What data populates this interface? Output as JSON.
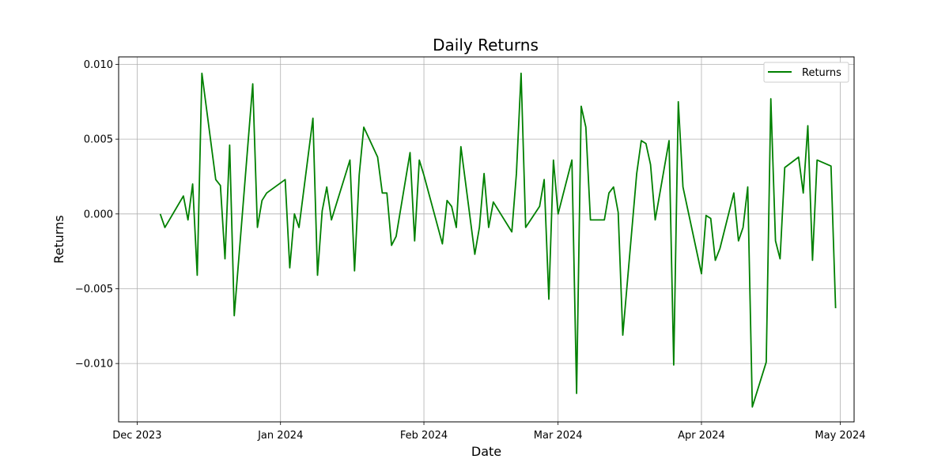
{
  "chart_data": {
    "type": "line",
    "title": "Daily Returns",
    "xlabel": "Date",
    "ylabel": "Returns",
    "xlim": [
      "2023-11-27",
      "2024-05-04"
    ],
    "ylim": [
      -0.0139,
      0.0105
    ],
    "grid": true,
    "legend_position": "top-right",
    "x_ticks": [
      {
        "date": "2023-12-01",
        "label": "Dec 2023"
      },
      {
        "date": "2024-01-01",
        "label": "Jan 2024"
      },
      {
        "date": "2024-02-01",
        "label": "Feb 2024"
      },
      {
        "date": "2024-03-01",
        "label": "Mar 2024"
      },
      {
        "date": "2024-04-01",
        "label": "Apr 2024"
      },
      {
        "date": "2024-05-01",
        "label": "May 2024"
      }
    ],
    "y_ticks": [
      {
        "value": 0.01,
        "label": "0.010"
      },
      {
        "value": 0.005,
        "label": "0.005"
      },
      {
        "value": 0.0,
        "label": "0.000"
      },
      {
        "value": -0.005,
        "label": "−0.005"
      },
      {
        "value": -0.01,
        "label": "−0.010"
      }
    ],
    "series": [
      {
        "name": "Returns",
        "color": "#008000",
        "points": [
          [
            "2023-12-06",
            0.0
          ],
          [
            "2023-12-07",
            -0.0009
          ],
          [
            "2023-12-11",
            0.0012
          ],
          [
            "2023-12-12",
            -0.0004
          ],
          [
            "2023-12-13",
            0.002
          ],
          [
            "2023-12-14",
            -0.0041
          ],
          [
            "2023-12-15",
            0.0094
          ],
          [
            "2023-12-18",
            0.0023
          ],
          [
            "2023-12-19",
            0.0019
          ],
          [
            "2023-12-20",
            -0.003
          ],
          [
            "2023-12-21",
            0.0046
          ],
          [
            "2023-12-22",
            -0.0068
          ],
          [
            "2023-12-26",
            0.0087
          ],
          [
            "2023-12-27",
            -0.0009
          ],
          [
            "2023-12-28",
            0.0009
          ],
          [
            "2023-12-29",
            0.0014
          ],
          [
            "2024-01-02",
            0.0023
          ],
          [
            "2024-01-03",
            -0.0036
          ],
          [
            "2024-01-04",
            0.0
          ],
          [
            "2024-01-05",
            -0.0009
          ],
          [
            "2024-01-08",
            0.0064
          ],
          [
            "2024-01-09",
            -0.0041
          ],
          [
            "2024-01-10",
            0.0002
          ],
          [
            "2024-01-11",
            0.0018
          ],
          [
            "2024-01-12",
            -0.0004
          ],
          [
            "2024-01-16",
            0.0036
          ],
          [
            "2024-01-17",
            -0.0038
          ],
          [
            "2024-01-18",
            0.0026
          ],
          [
            "2024-01-19",
            0.0058
          ],
          [
            "2024-01-22",
            0.0038
          ],
          [
            "2024-01-23",
            0.0014
          ],
          [
            "2024-01-24",
            0.0014
          ],
          [
            "2024-01-25",
            -0.0021
          ],
          [
            "2024-01-26",
            -0.0015
          ],
          [
            "2024-01-29",
            0.0041
          ],
          [
            "2024-01-30",
            -0.0018
          ],
          [
            "2024-01-31",
            0.0036
          ],
          [
            "2024-02-01",
            0.0026
          ],
          [
            "2024-02-05",
            -0.002
          ],
          [
            "2024-02-06",
            0.0009
          ],
          [
            "2024-02-07",
            0.0005
          ],
          [
            "2024-02-08",
            -0.0009
          ],
          [
            "2024-02-09",
            0.0045
          ],
          [
            "2024-02-12",
            -0.0027
          ],
          [
            "2024-02-13",
            -0.0009
          ],
          [
            "2024-02-14",
            0.0027
          ],
          [
            "2024-02-15",
            -0.0009
          ],
          [
            "2024-02-16",
            0.0008
          ],
          [
            "2024-02-20",
            -0.0012
          ],
          [
            "2024-02-21",
            0.0027
          ],
          [
            "2024-02-22",
            0.0094
          ],
          [
            "2024-02-23",
            -0.0009
          ],
          [
            "2024-02-26",
            0.0005
          ],
          [
            "2024-02-27",
            0.0023
          ],
          [
            "2024-02-28",
            -0.0057
          ],
          [
            "2024-02-29",
            0.0036
          ],
          [
            "2024-03-01",
            0.0
          ],
          [
            "2024-03-04",
            0.0036
          ],
          [
            "2024-03-05",
            -0.012
          ],
          [
            "2024-03-06",
            0.0072
          ],
          [
            "2024-03-07",
            0.0058
          ],
          [
            "2024-03-08",
            -0.0004
          ],
          [
            "2024-03-11",
            -0.0004
          ],
          [
            "2024-03-12",
            0.0014
          ],
          [
            "2024-03-13",
            0.0018
          ],
          [
            "2024-03-14",
            0.0001
          ],
          [
            "2024-03-15",
            -0.0081
          ],
          [
            "2024-03-18",
            0.0027
          ],
          [
            "2024-03-19",
            0.0049
          ],
          [
            "2024-03-20",
            0.0047
          ],
          [
            "2024-03-21",
            0.0033
          ],
          [
            "2024-03-22",
            -0.0004
          ],
          [
            "2024-03-25",
            0.0049
          ],
          [
            "2024-03-26",
            -0.0101
          ],
          [
            "2024-03-27",
            0.0075
          ],
          [
            "2024-03-28",
            0.0018
          ],
          [
            "2024-04-01",
            -0.004
          ],
          [
            "2024-04-02",
            -0.0001
          ],
          [
            "2024-04-03",
            -0.0003
          ],
          [
            "2024-04-04",
            -0.0031
          ],
          [
            "2024-04-05",
            -0.0023
          ],
          [
            "2024-04-08",
            0.0014
          ],
          [
            "2024-04-09",
            -0.0018
          ],
          [
            "2024-04-10",
            -0.0009
          ],
          [
            "2024-04-11",
            0.0018
          ],
          [
            "2024-04-12",
            -0.0129
          ],
          [
            "2024-04-15",
            -0.0099
          ],
          [
            "2024-04-16",
            0.0077
          ],
          [
            "2024-04-17",
            -0.0018
          ],
          [
            "2024-04-18",
            -0.003
          ],
          [
            "2024-04-19",
            0.0031
          ],
          [
            "2024-04-22",
            0.0038
          ],
          [
            "2024-04-23",
            0.0014
          ],
          [
            "2024-04-24",
            0.0059
          ],
          [
            "2024-04-25",
            -0.0031
          ],
          [
            "2024-04-26",
            0.0036
          ],
          [
            "2024-04-29",
            0.0032
          ],
          [
            "2024-04-30",
            -0.0063
          ]
        ]
      }
    ]
  }
}
